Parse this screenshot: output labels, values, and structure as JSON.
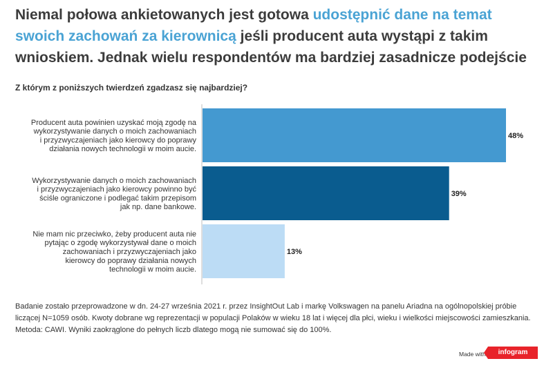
{
  "title": {
    "part1": "Niemal połowa ankietowanych jest gotowa ",
    "highlight": "udostępnić dane na temat swoich zachowań za kierownicą",
    "part2": " jeśli producent auta wystąpi z takim wnioskiem. Jednak wielu respondentów ma bardziej zasadnicze podejście",
    "highlight_color": "#4aa3d4"
  },
  "chart_data": {
    "type": "bar",
    "orientation": "horizontal",
    "title": "Z którym z poniższych twierdzeń zgadzasz się najbardziej?",
    "categories": [
      "Producent auta powinien uzyskać moją zgodę na wykorzystywanie danych o moich zachowaniach i przyzwyczajeniach jako kierowcy do poprawy działania nowych technologii w moim aucie.",
      "Wykorzystywanie danych o moich zachowaniach i przyzwyczajeniach jako kierowcy powinno być ściśle ograniczone i podlegać takim przepisom jak np. dane bankowe.",
      "Nie mam nic przeciwko, żeby producent auta nie pytając o zgodę wykorzystywał dane o moich zachowaniach i przyzwyczajeniach jako kierowcy do poprawy działania nowych technologii w moim aucie."
    ],
    "category_lines": [
      [
        "Producent auta powinien uzyskać moją zgodę na",
        "wykorzystywanie danych o moich zachowaniach",
        "i przyzwyczajeniach jako kierowcy do poprawy",
        "działania nowych technologii w moim aucie."
      ],
      [
        "Wykorzystywanie danych o moich zachowaniach",
        "i przyzwyczajeniach jako kierowcy powinno być",
        "ściśle ograniczone i podlegać takim przepisom",
        "jak np. dane bankowe."
      ],
      [
        "Nie mam nic przeciwko, żeby producent auta nie",
        "pytając o zgodę wykorzystywał dane o moich",
        "zachowaniach i przyzwyczajeniach jako",
        "kierowcy do poprawy działania nowych",
        "technologii w moim aucie."
      ]
    ],
    "values": [
      48,
      39,
      13
    ],
    "value_labels": [
      "48%",
      "39%",
      "13%"
    ],
    "colors": [
      "#4499d0",
      "#0a5c8f",
      "#bcdcf5"
    ],
    "xlim": [
      0,
      48
    ],
    "grid": false,
    "legend": "none"
  },
  "footer": "Badanie zostało przeprowadzone w dn. 24-27 września 2021 r. przez InsightOut Lab i markę Volkswagen na panelu Ariadna na ogólnopolskiej próbie liczącej N=1059 osób. Kwoty dobrane wg reprezentacji w populacji Polaków w wieku 18 lat i więcej dla płci, wieku i wielkości miejscowości zamieszkania. Metoda: CAWI. Wyniki zaokrąglone do pełnych liczb dlatego mogą nie sumować się do 100%.",
  "branding": {
    "made_with": "Made with",
    "logo": "infogram",
    "logo_color": "#e8232a"
  }
}
